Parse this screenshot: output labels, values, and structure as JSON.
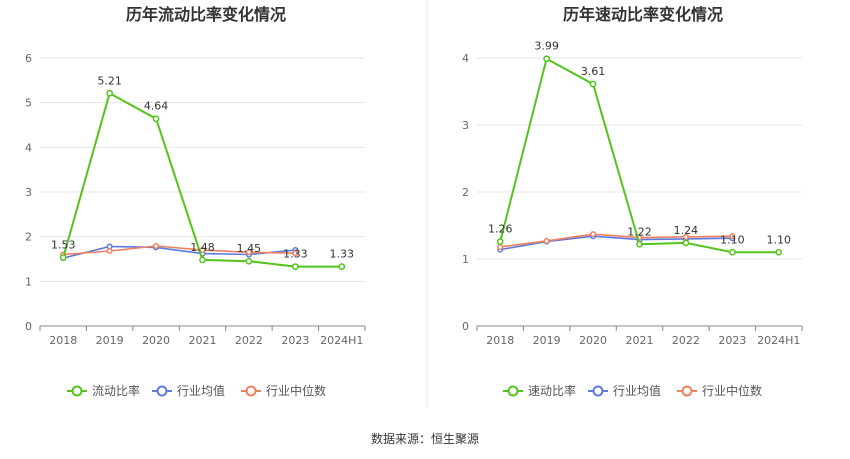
{
  "source_label": "数据来源：恒生聚源",
  "colors": {
    "main": "#52c41a",
    "avg": "#5b7be0",
    "median": "#ee8060",
    "grid": "#e6e6e6",
    "axis": "#888888"
  },
  "chart_data": [
    {
      "type": "line",
      "title": "历年流动比率变化情况",
      "categories": [
        "2018",
        "2019",
        "2020",
        "2021",
        "2022",
        "2023",
        "2024H1"
      ],
      "ylim": [
        0,
        6
      ],
      "yticks": [
        0,
        1,
        2,
        3,
        4,
        5,
        6
      ],
      "grid": true,
      "legend_position": "bottom",
      "series": [
        {
          "name": "流动比率",
          "values": [
            1.53,
            5.21,
            4.64,
            1.48,
            1.45,
            1.33,
            1.33
          ],
          "labels": [
            "1.53",
            "5.21",
            "4.64",
            "1.48",
            "1.45",
            "1.33",
            "1.33"
          ]
        },
        {
          "name": "行业均值",
          "values": [
            1.52,
            1.78,
            1.76,
            1.62,
            1.6,
            1.7,
            null
          ]
        },
        {
          "name": "行业中位数",
          "values": [
            1.6,
            1.68,
            1.79,
            1.7,
            1.65,
            1.63,
            null
          ]
        }
      ]
    },
    {
      "type": "line",
      "title": "历年速动比率变化情况",
      "categories": [
        "2018",
        "2019",
        "2020",
        "2021",
        "2022",
        "2023",
        "2024H1"
      ],
      "ylim": [
        0,
        4
      ],
      "yticks": [
        0,
        1,
        2,
        3,
        4
      ],
      "grid": true,
      "legend_position": "bottom",
      "series": [
        {
          "name": "速动比率",
          "values": [
            1.26,
            3.99,
            3.61,
            1.22,
            1.24,
            1.1,
            1.1
          ],
          "labels": [
            "1.26",
            "3.99",
            "3.61",
            "1.22",
            "1.24",
            "1.10",
            "1.10"
          ]
        },
        {
          "name": "行业均值",
          "values": [
            1.14,
            1.26,
            1.34,
            1.29,
            1.3,
            1.31,
            null
          ]
        },
        {
          "name": "行业中位数",
          "values": [
            1.18,
            1.27,
            1.37,
            1.32,
            1.33,
            1.34,
            null
          ]
        }
      ]
    }
  ]
}
